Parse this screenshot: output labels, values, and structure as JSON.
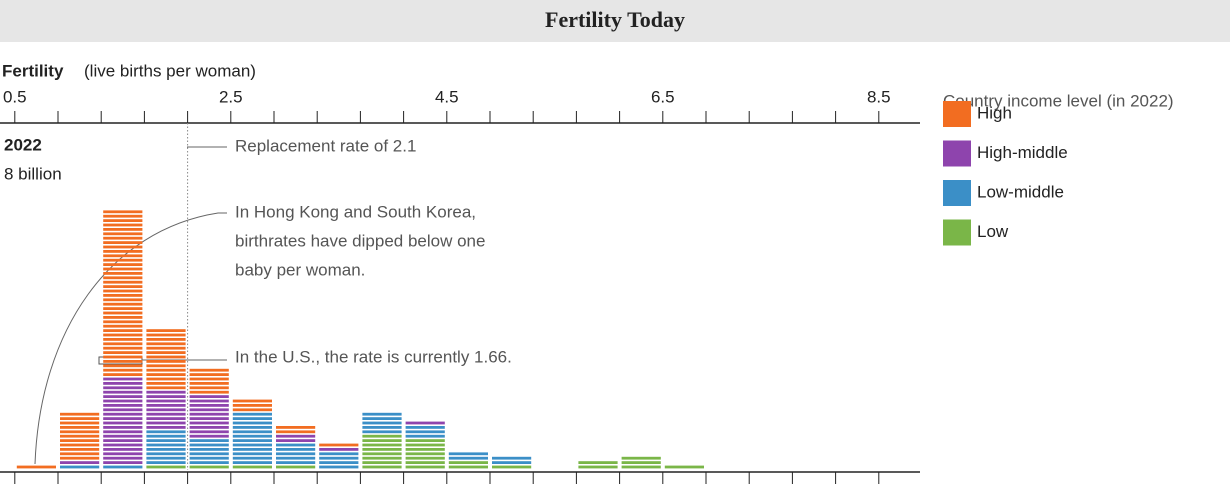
{
  "chart_data": {
    "type": "stacked_histogram",
    "title": "Fertility Today",
    "x_label": "Fertility",
    "x_label_note": "(live births per woman)",
    "year": "2022",
    "population": "8 billion",
    "legend_title": "Country income level (in 2022)",
    "bins": [
      0.5,
      0.9,
      1.3,
      1.7,
      2.1,
      2.5,
      2.9,
      3.3,
      3.7,
      4.1,
      4.5,
      4.9,
      5.3,
      5.7,
      6.1,
      6.5,
      6.9,
      7.3,
      7.7,
      8.1,
      8.5
    ],
    "series": [
      {
        "name": "High",
        "color": "#f26d21",
        "values": [
          1,
          11,
          38,
          14,
          6,
          3,
          2,
          1,
          0,
          0,
          0,
          0,
          0,
          0,
          0,
          0,
          0,
          0,
          0,
          0
        ]
      },
      {
        "name": "High-middle",
        "color": "#8e44ad",
        "values": [
          0,
          1,
          20,
          9,
          10,
          0,
          2,
          1,
          0,
          1,
          0,
          0,
          0,
          0,
          0,
          0,
          0,
          0,
          0,
          0
        ]
      },
      {
        "name": "Low-middle",
        "color": "#3b8fc7",
        "values": [
          0,
          1,
          1,
          8,
          6,
          12,
          5,
          4,
          5,
          3,
          2,
          2,
          0,
          0,
          0,
          0,
          0,
          0,
          0,
          0
        ]
      },
      {
        "name": "Low",
        "color": "#7ab648",
        "values": [
          0,
          0,
          0,
          1,
          1,
          1,
          1,
          0,
          8,
          7,
          2,
          1,
          0,
          2,
          3,
          1,
          0,
          0,
          0,
          0
        ]
      }
    ],
    "xlim": [
      0.4,
      8.9
    ],
    "xticks": [
      0.5,
      2.5,
      4.5,
      6.5,
      8.5
    ],
    "reference_line": 2.1,
    "annotations": [
      "Replacement rate of 2.1",
      "In Hong Kong and South Korea,",
      "birthrates have dipped below one",
      "baby per woman.",
      "In the U.S., the rate is currently 1.66."
    ]
  }
}
